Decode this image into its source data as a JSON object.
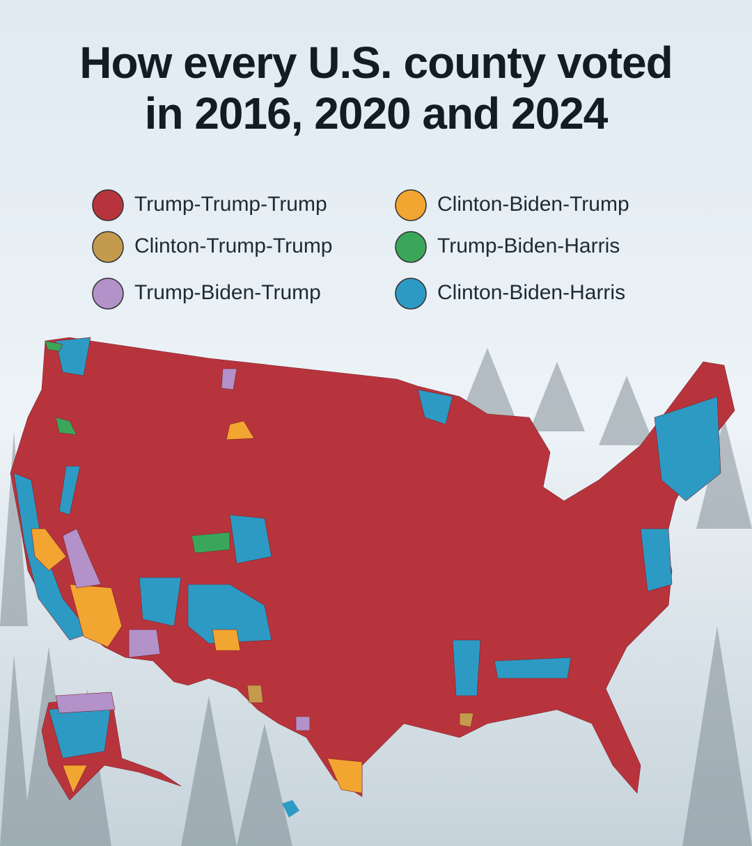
{
  "title_lines": [
    "How every U.S. county voted",
    "in 2016, 2020 and 2024"
  ],
  "legend": [
    {
      "label": "Trump-Trump-Trump",
      "color": "#b8343d"
    },
    {
      "label": "Clinton-Trump-Trump",
      "color": "#c49a4c"
    },
    {
      "label": "Trump-Biden-Trump",
      "color": "#b391c9"
    },
    {
      "label": "Clinton-Biden-Trump",
      "color": "#f2a531"
    },
    {
      "label": "Trump-Biden-Harris",
      "color": "#3aa65a"
    },
    {
      "label": "Clinton-Biden-Harris",
      "color": "#2d9ac4"
    }
  ]
}
